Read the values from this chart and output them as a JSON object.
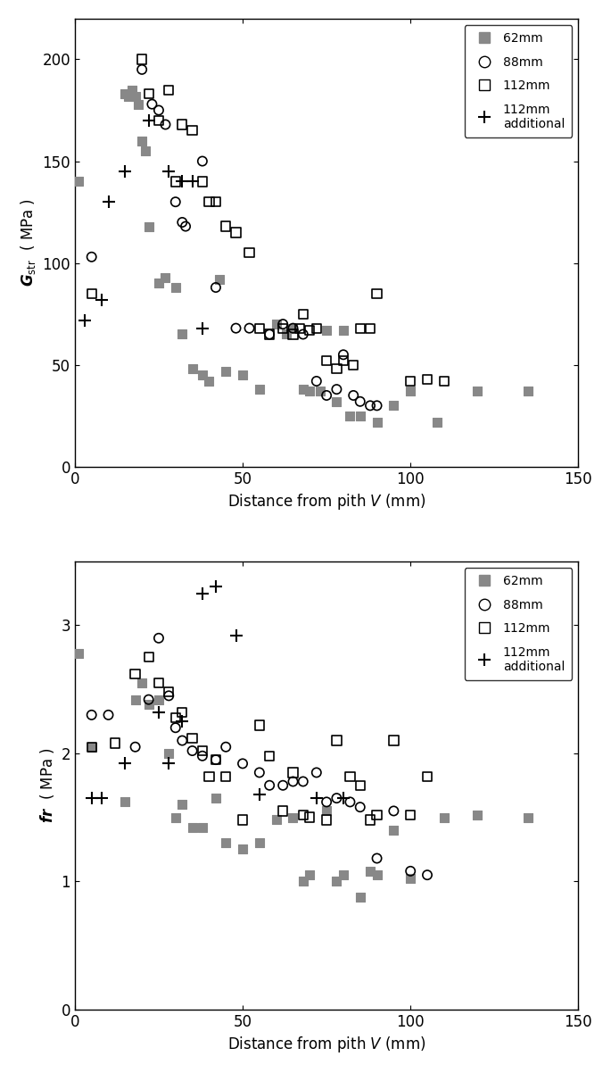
{
  "plot1": {
    "xlabel": "Distance from pith $V$ (mm)",
    "xlim": [
      0,
      150
    ],
    "ylim": [
      0,
      220
    ],
    "yticks": [
      0,
      50,
      100,
      150,
      200
    ],
    "xticks": [
      0,
      50,
      100,
      150
    ],
    "series_62mm": {
      "x": [
        1,
        15,
        16,
        17,
        18,
        19,
        20,
        21,
        22,
        25,
        27,
        30,
        32,
        35,
        38,
        40,
        43,
        45,
        50,
        55,
        60,
        63,
        65,
        68,
        70,
        73,
        75,
        78,
        80,
        82,
        85,
        90,
        95,
        100,
        108,
        120,
        135
      ],
      "y": [
        140,
        183,
        182,
        185,
        182,
        178,
        160,
        155,
        118,
        90,
        93,
        88,
        65,
        48,
        45,
        42,
        92,
        47,
        45,
        38,
        70,
        65,
        68,
        38,
        37,
        37,
        67,
        32,
        67,
        25,
        25,
        22,
        30,
        37,
        22,
        37,
        37
      ]
    },
    "series_88mm": {
      "x": [
        5,
        20,
        23,
        25,
        27,
        30,
        32,
        33,
        38,
        42,
        48,
        52,
        58,
        62,
        65,
        68,
        72,
        75,
        78,
        80,
        83,
        85,
        88,
        90
      ],
      "y": [
        103,
        195,
        178,
        175,
        168,
        130,
        120,
        118,
        150,
        88,
        68,
        68,
        65,
        70,
        68,
        65,
        42,
        35,
        38,
        55,
        35,
        32,
        30,
        30
      ]
    },
    "series_112mm": {
      "x": [
        5,
        20,
        22,
        25,
        28,
        30,
        32,
        35,
        38,
        40,
        42,
        45,
        48,
        52,
        55,
        58,
        62,
        65,
        67,
        68,
        70,
        72,
        75,
        78,
        80,
        83,
        85,
        88,
        90,
        100,
        105,
        110
      ],
      "y": [
        85,
        200,
        183,
        170,
        185,
        140,
        168,
        165,
        140,
        130,
        130,
        118,
        115,
        105,
        68,
        65,
        68,
        65,
        68,
        75,
        67,
        68,
        52,
        48,
        52,
        50,
        68,
        68,
        85,
        42,
        43,
        42
      ]
    },
    "series_112mm_add": {
      "x": [
        3,
        8,
        10,
        15,
        22,
        28,
        32,
        35,
        38
      ],
      "y": [
        72,
        82,
        130,
        145,
        170,
        145,
        140,
        140,
        68
      ]
    }
  },
  "plot2": {
    "xlabel": "Distance from pith $V$ (mm)",
    "xlim": [
      0,
      150
    ],
    "ylim": [
      0,
      3.5
    ],
    "yticks": [
      0,
      1,
      2,
      3
    ],
    "xticks": [
      0,
      50,
      100,
      150
    ],
    "series_62mm": {
      "x": [
        1,
        5,
        15,
        18,
        20,
        22,
        25,
        28,
        30,
        32,
        35,
        38,
        42,
        45,
        50,
        55,
        60,
        65,
        68,
        70,
        75,
        78,
        80,
        85,
        88,
        90,
        95,
        100,
        110,
        120,
        135
      ],
      "y": [
        2.78,
        2.05,
        1.62,
        2.42,
        2.55,
        2.38,
        2.42,
        2.0,
        1.5,
        1.6,
        1.42,
        1.42,
        1.65,
        1.3,
        1.25,
        1.3,
        1.48,
        1.5,
        1.0,
        1.05,
        1.55,
        1.0,
        1.05,
        0.88,
        1.08,
        1.05,
        1.4,
        1.02,
        1.5,
        1.52,
        1.5
      ]
    },
    "series_88mm": {
      "x": [
        5,
        10,
        18,
        22,
        25,
        28,
        30,
        32,
        35,
        38,
        42,
        45,
        50,
        55,
        58,
        62,
        65,
        68,
        72,
        75,
        78,
        82,
        85,
        90,
        95,
        100,
        105
      ],
      "y": [
        2.3,
        2.3,
        2.05,
        2.42,
        2.9,
        2.45,
        2.2,
        2.1,
        2.02,
        1.98,
        1.95,
        2.05,
        1.92,
        1.85,
        1.75,
        1.75,
        1.78,
        1.78,
        1.85,
        1.62,
        1.65,
        1.62,
        1.58,
        1.18,
        1.55,
        1.08,
        1.05
      ]
    },
    "series_112mm": {
      "x": [
        5,
        12,
        18,
        22,
        25,
        28,
        30,
        32,
        35,
        38,
        40,
        42,
        45,
        50,
        55,
        58,
        62,
        65,
        68,
        70,
        75,
        78,
        82,
        85,
        88,
        90,
        95,
        100,
        105
      ],
      "y": [
        2.05,
        2.08,
        2.62,
        2.75,
        2.55,
        2.48,
        2.28,
        2.32,
        2.12,
        2.02,
        1.82,
        1.95,
        1.82,
        1.48,
        2.22,
        1.98,
        1.55,
        1.85,
        1.52,
        1.5,
        1.48,
        2.1,
        1.82,
        1.75,
        1.48,
        1.52,
        2.1,
        1.52,
        1.82
      ]
    },
    "series_112mm_add": {
      "x": [
        5,
        8,
        15,
        25,
        28,
        32,
        38,
        42,
        48,
        55,
        72,
        80
      ],
      "y": [
        1.65,
        1.65,
        1.92,
        2.32,
        1.92,
        2.25,
        3.25,
        3.3,
        2.92,
        1.68,
        1.65,
        1.65
      ]
    }
  },
  "gray62": "#888888",
  "ms_filled": 55,
  "ms_open": 55,
  "ms_plus": 100
}
